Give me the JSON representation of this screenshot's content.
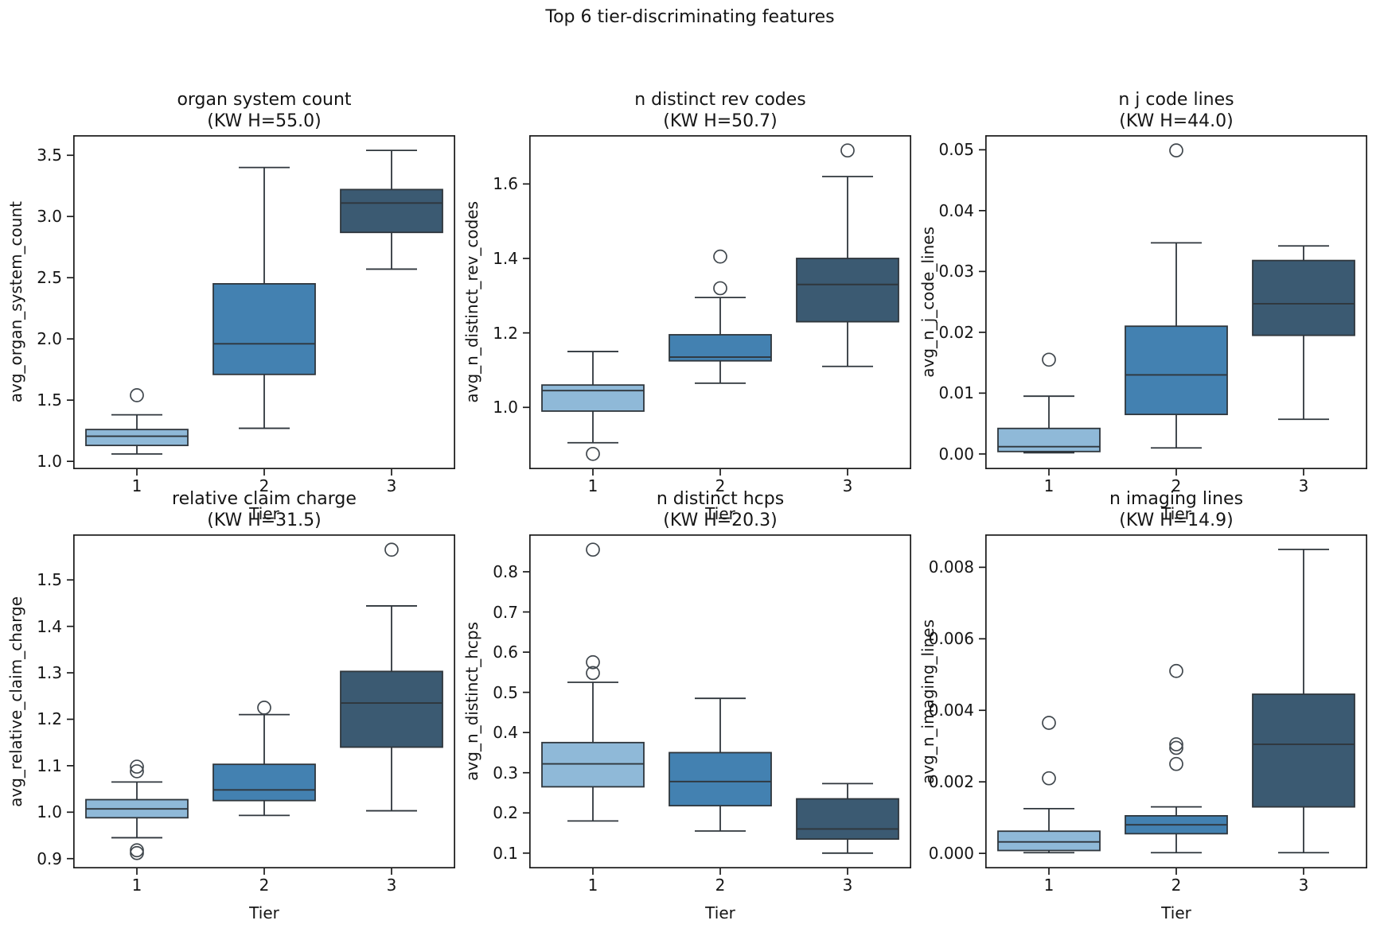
{
  "figure": {
    "suptitle": "Top 6 tier-discriminating features"
  },
  "style": {
    "box_colors": [
      "#8FB9D8",
      "#4381B1",
      "#3B5A72"
    ],
    "edge_color": "#2F363C",
    "spine_color": "#1a1a1a",
    "text_color": "#151515",
    "background": "#ffffff"
  },
  "chart_data": [
    {
      "type": "box",
      "title": "organ system count",
      "subtitle": "(KW H=55.0)",
      "kw_h": 55.0,
      "xlabel": "Tier",
      "ylabel": "avg_organ_system_count",
      "categories": [
        "1",
        "2",
        "3"
      ],
      "ylim": [
        0.936,
        3.664
      ],
      "yticks": [
        1.0,
        1.5,
        2.0,
        2.5,
        3.0,
        3.5
      ],
      "ytick_labels": [
        "1.0",
        "1.5",
        "2.0",
        "2.5",
        "3.0",
        "3.5"
      ],
      "boxes": [
        {
          "tier": "1",
          "whislo": 1.06,
          "q1": 1.13,
          "med": 1.205,
          "q3": 1.26,
          "whishi": 1.38,
          "outliers": [
            1.54
          ]
        },
        {
          "tier": "2",
          "whislo": 1.27,
          "q1": 1.71,
          "med": 1.96,
          "q3": 2.45,
          "whishi": 3.4,
          "outliers": []
        },
        {
          "tier": "3",
          "whislo": 2.57,
          "q1": 2.87,
          "med": 3.11,
          "q3": 3.22,
          "whishi": 3.54,
          "outliers": []
        }
      ]
    },
    {
      "type": "box",
      "title": "n distinct rev codes",
      "subtitle": "(KW H=50.7)",
      "kw_h": 50.7,
      "xlabel": "Tier",
      "ylabel": "avg_n_distinct_rev_codes",
      "categories": [
        "1",
        "2",
        "3"
      ],
      "ylim": [
        0.834,
        1.731
      ],
      "yticks": [
        1.0,
        1.2,
        1.4,
        1.6
      ],
      "ytick_labels": [
        "1.0",
        "1.2",
        "1.4",
        "1.6"
      ],
      "boxes": [
        {
          "tier": "1",
          "whislo": 0.905,
          "q1": 0.99,
          "med": 1.045,
          "q3": 1.06,
          "whishi": 1.15,
          "outliers": [
            0.875
          ]
        },
        {
          "tier": "2",
          "whislo": 1.065,
          "q1": 1.125,
          "med": 1.135,
          "q3": 1.195,
          "whishi": 1.295,
          "outliers": [
            1.32,
            1.405
          ]
        },
        {
          "tier": "3",
          "whislo": 1.11,
          "q1": 1.23,
          "med": 1.33,
          "q3": 1.4,
          "whishi": 1.62,
          "outliers": [
            1.69
          ]
        }
      ]
    },
    {
      "type": "box",
      "title": "n j code lines",
      "subtitle": "(KW H=44.0)",
      "kw_h": 44.0,
      "xlabel": "Tier",
      "ylabel": "avg_n_j_code_lines",
      "categories": [
        "1",
        "2",
        "3"
      ],
      "ylim": [
        -0.0025,
        0.0524
      ],
      "yticks": [
        0.0,
        0.01,
        0.02,
        0.03,
        0.04,
        0.05
      ],
      "ytick_labels": [
        "0.00",
        "0.01",
        "0.02",
        "0.03",
        "0.04",
        "0.05"
      ],
      "boxes": [
        {
          "tier": "1",
          "whislo": 0.0002,
          "q1": 0.0004,
          "med": 0.0012,
          "q3": 0.0042,
          "whishi": 0.0095,
          "outliers": [
            0.0155
          ]
        },
        {
          "tier": "2",
          "whislo": 0.001,
          "q1": 0.0065,
          "med": 0.013,
          "q3": 0.021,
          "whishi": 0.0347,
          "outliers": [
            0.0499
          ]
        },
        {
          "tier": "3",
          "whislo": 0.0057,
          "q1": 0.0195,
          "med": 0.0247,
          "q3": 0.0318,
          "whishi": 0.0342,
          "outliers": []
        }
      ]
    },
    {
      "type": "box",
      "title": "relative claim charge",
      "subtitle": "(KW H=31.5)",
      "kw_h": 31.5,
      "xlabel": "Tier",
      "ylabel": "avg_relative_claim_charge",
      "categories": [
        "1",
        "2",
        "3"
      ],
      "ylim": [
        0.879,
        1.598
      ],
      "yticks": [
        0.9,
        1.0,
        1.1,
        1.2,
        1.3,
        1.4,
        1.5
      ],
      "ytick_labels": [
        "0.9",
        "1.0",
        "1.1",
        "1.2",
        "1.3",
        "1.4",
        "1.5"
      ],
      "boxes": [
        {
          "tier": "1",
          "whislo": 0.945,
          "q1": 0.988,
          "med": 1.007,
          "q3": 1.027,
          "whishi": 1.065,
          "outliers": [
            0.912,
            0.918,
            1.088,
            1.098
          ]
        },
        {
          "tier": "2",
          "whislo": 0.993,
          "q1": 1.025,
          "med": 1.048,
          "q3": 1.103,
          "whishi": 1.21,
          "outliers": [
            1.225
          ]
        },
        {
          "tier": "3",
          "whislo": 1.003,
          "q1": 1.14,
          "med": 1.235,
          "q3": 1.303,
          "whishi": 1.444,
          "outliers": [
            1.565
          ]
        }
      ]
    },
    {
      "type": "box",
      "title": "n distinct hcps",
      "subtitle": "(KW H=20.3)",
      "kw_h": 20.3,
      "xlabel": "Tier",
      "ylabel": "avg_n_distinct_hcps",
      "categories": [
        "1",
        "2",
        "3"
      ],
      "ylim": [
        0.062,
        0.893
      ],
      "yticks": [
        0.1,
        0.2,
        0.3,
        0.4,
        0.5,
        0.6,
        0.7,
        0.8
      ],
      "ytick_labels": [
        "0.1",
        "0.2",
        "0.3",
        "0.4",
        "0.5",
        "0.6",
        "0.7",
        "0.8"
      ],
      "boxes": [
        {
          "tier": "1",
          "whislo": 0.18,
          "q1": 0.265,
          "med": 0.322,
          "q3": 0.375,
          "whishi": 0.525,
          "outliers": [
            0.548,
            0.575,
            0.855
          ]
        },
        {
          "tier": "2",
          "whislo": 0.155,
          "q1": 0.218,
          "med": 0.278,
          "q3": 0.35,
          "whishi": 0.485,
          "outliers": []
        },
        {
          "tier": "3",
          "whislo": 0.1,
          "q1": 0.135,
          "med": 0.16,
          "q3": 0.235,
          "whishi": 0.273,
          "outliers": []
        }
      ]
    },
    {
      "type": "box",
      "title": "n imaging lines",
      "subtitle": "(KW H=14.9)",
      "kw_h": 14.9,
      "xlabel": "Tier",
      "ylabel": "avg_n_imaging_lines",
      "categories": [
        "1",
        "2",
        "3"
      ],
      "ylim": [
        -0.00042,
        0.00892
      ],
      "yticks": [
        0.0,
        0.002,
        0.004,
        0.006,
        0.008
      ],
      "ytick_labels": [
        "0.000",
        "0.002",
        "0.004",
        "0.006",
        "0.008"
      ],
      "boxes": [
        {
          "tier": "1",
          "whislo": 2e-05,
          "q1": 8e-05,
          "med": 0.00032,
          "q3": 0.00062,
          "whishi": 0.00125,
          "outliers": [
            0.0021,
            0.00365
          ]
        },
        {
          "tier": "2",
          "whislo": 2e-05,
          "q1": 0.00055,
          "med": 0.0008,
          "q3": 0.00105,
          "whishi": 0.0013,
          "outliers": [
            0.0025,
            0.00295,
            0.00305,
            0.0051
          ]
        },
        {
          "tier": "3",
          "whislo": 2e-05,
          "q1": 0.0013,
          "med": 0.00305,
          "q3": 0.00445,
          "whishi": 0.0085,
          "outliers": []
        }
      ]
    }
  ]
}
